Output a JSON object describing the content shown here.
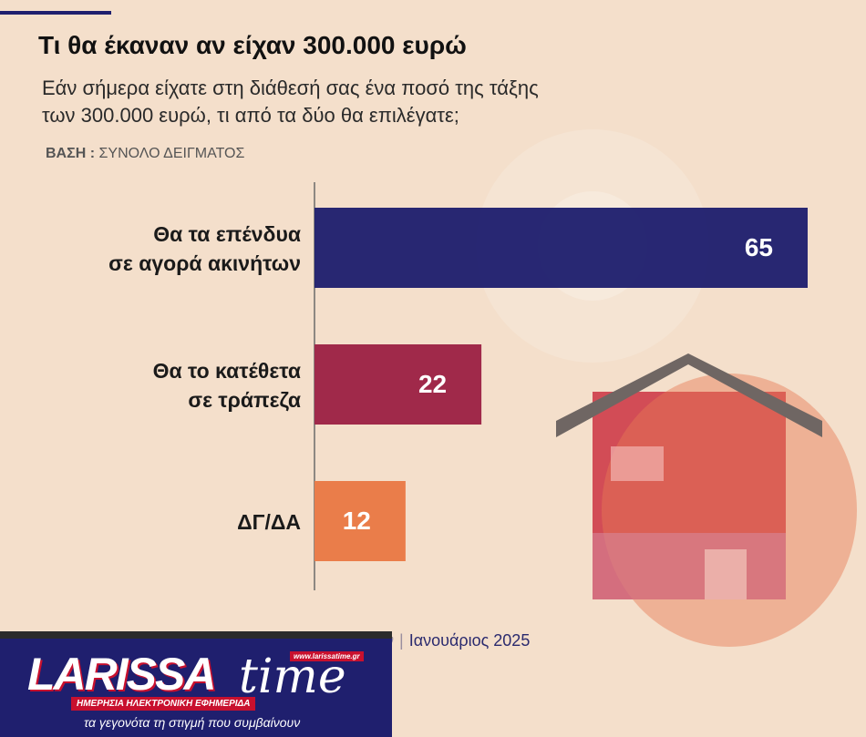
{
  "header": {
    "title": "Τι θα έκαναν αν είχαν 300.000 ευρώ",
    "subtitle_line1": "Εάν σήμερα είχατε στη διάθεσή σας ένα ποσό της τάξης",
    "subtitle_line2": "των 300.000 ευρώ, τι από τα δύο θα επιλέγατε;",
    "base_label": "ΒΑΣΗ :",
    "base_value": "ΣΥΝΟΛΟ ΔΕΙΓΜΑΤΟΣ"
  },
  "chart_data": {
    "type": "bar",
    "orientation": "horizontal",
    "categories": [
      [
        "Θα τα επένδυα",
        "σε αγορά ακινήτων"
      ],
      [
        "Θα το κατέθετα",
        "σε τράπεζα"
      ],
      [
        "ΔΓ/ΔΑ"
      ]
    ],
    "values": [
      65,
      22,
      12
    ],
    "colors": [
      "#1f1f6e",
      "#a0294a",
      "#ea7d4a"
    ],
    "xlim": [
      0,
      65
    ],
    "grid": false
  },
  "footer": {
    "source_prefix": "ν",
    "source_date": "Ιανουάριος 2025"
  },
  "logo": {
    "url": "www.larissatime.gr",
    "word": "LARISSA",
    "word2": "time",
    "daily": "ΗΜΕΡΗΣΙΑ ΗΛΕΚΤΡΟΝΙΚΗ ΕΦΗΜΕΡΙΔΑ",
    "tagline": "τα γεγονότα τη στιγμή που συμβαίνουν"
  },
  "colors": {
    "background": "#f4dfcb",
    "navy": "#1f1f6e",
    "crimson": "#a0294a",
    "orange": "#ea7d4a",
    "logo_red": "#c8102e"
  },
  "illustration": {
    "icon": "house-icon"
  }
}
